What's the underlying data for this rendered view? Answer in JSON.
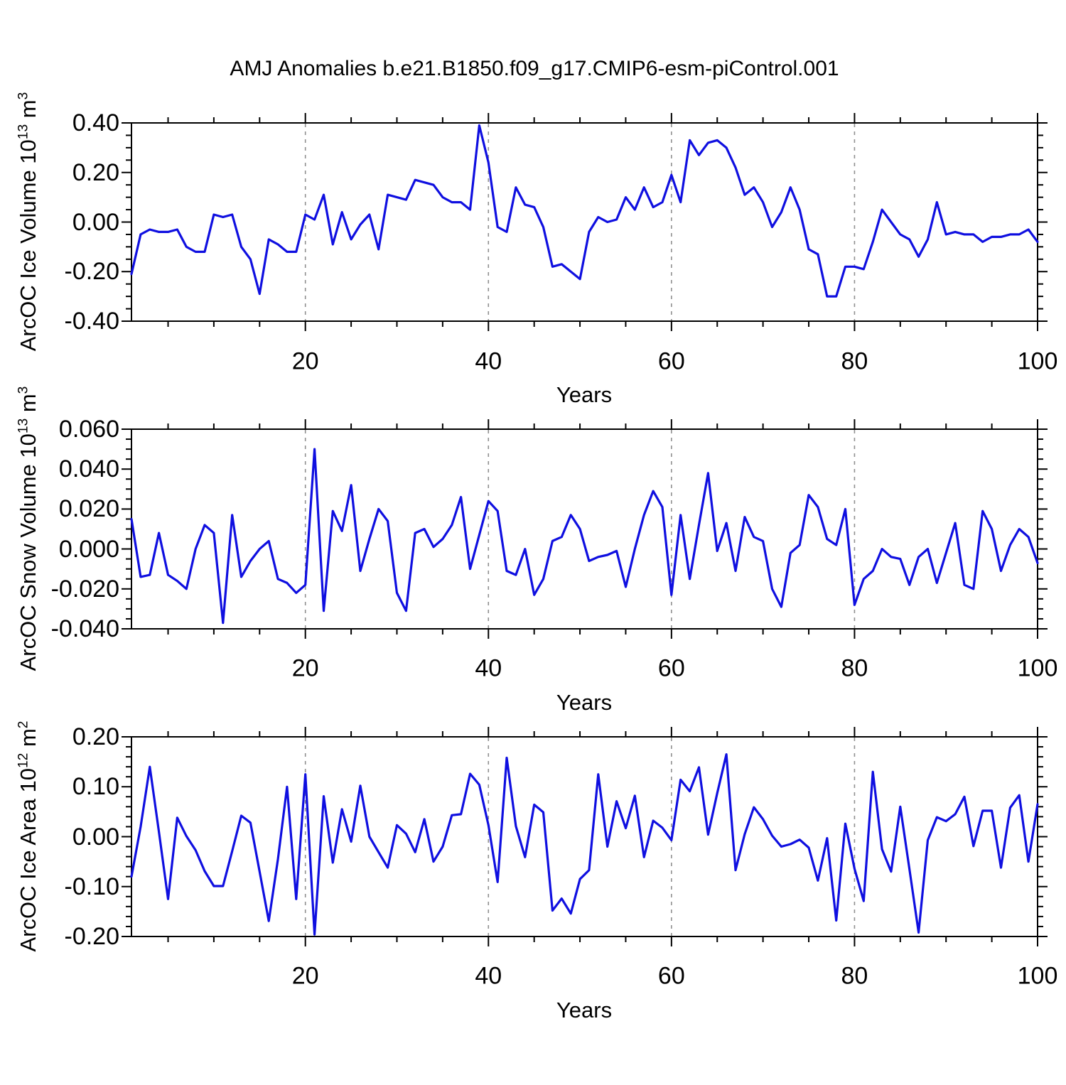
{
  "title": "AMJ Anomalies b.e21.B1850.f09_g17.CMIP6-esm-piControl.001",
  "colors": {
    "line": "#0f0fe0",
    "grid": "#909090",
    "frame": "#000000"
  },
  "chart_data": [
    {
      "type": "line",
      "ylabel": {
        "pre": "ArcOC Ice Volume 10",
        "exp": "13",
        "unit": " m",
        "unit_exp": "3"
      },
      "xlabel": "Years",
      "xlim": [
        1,
        100
      ],
      "ylim": [
        -0.4,
        0.4
      ],
      "grid_x": [
        20,
        40,
        60,
        80
      ],
      "x_ticks": {
        "labels": [
          "20",
          "40",
          "60",
          "80",
          "100"
        ],
        "values": [
          20,
          40,
          60,
          80,
          100
        ],
        "minor_step": 5
      },
      "y_ticks": {
        "labels": [
          "0.40",
          "0.20",
          "0.00",
          "-0.20",
          "-0.40"
        ],
        "values": [
          0.4,
          0.2,
          0.0,
          -0.2,
          -0.4
        ],
        "minor_step": 0.05
      },
      "x_start": 1,
      "x_step": 1,
      "values": [
        -0.21,
        -0.05,
        -0.03,
        -0.04,
        -0.04,
        -0.03,
        -0.1,
        -0.12,
        -0.12,
        0.03,
        0.02,
        0.03,
        -0.1,
        -0.15,
        -0.29,
        -0.07,
        -0.09,
        -0.12,
        -0.12,
        0.03,
        0.01,
        0.11,
        -0.09,
        0.04,
        -0.07,
        -0.01,
        0.03,
        -0.11,
        0.11,
        0.1,
        0.09,
        0.17,
        0.16,
        0.15,
        0.1,
        0.08,
        0.08,
        0.05,
        0.39,
        0.24,
        -0.02,
        -0.04,
        0.14,
        0.07,
        0.06,
        -0.02,
        -0.18,
        -0.17,
        -0.2,
        -0.23,
        -0.04,
        0.02,
        0.0,
        0.01,
        0.1,
        0.05,
        0.14,
        0.06,
        0.08,
        0.19,
        0.08,
        0.33,
        0.27,
        0.32,
        0.33,
        0.3,
        0.22,
        0.11,
        0.14,
        0.08,
        -0.02,
        0.04,
        0.14,
        0.05,
        -0.11,
        -0.13,
        -0.3,
        -0.3,
        -0.18,
        -0.18,
        -0.19,
        -0.08,
        0.05,
        0.0,
        -0.05,
        -0.07,
        -0.14,
        -0.07,
        0.08,
        -0.05,
        -0.04,
        -0.05,
        -0.05,
        -0.08,
        -0.06,
        -0.06,
        -0.05,
        -0.05,
        -0.03,
        -0.08
      ]
    },
    {
      "type": "line",
      "ylabel": {
        "pre": "ArcOC Snow Volume 10",
        "exp": "13",
        "unit": " m",
        "unit_exp": "3"
      },
      "xlabel": "Years",
      "xlim": [
        1,
        100
      ],
      "ylim": [
        -0.04,
        0.06
      ],
      "grid_x": [
        20,
        40,
        60,
        80
      ],
      "x_ticks": {
        "labels": [
          "20",
          "40",
          "60",
          "80",
          "100"
        ],
        "values": [
          20,
          40,
          60,
          80,
          100
        ],
        "minor_step": 5
      },
      "y_ticks": {
        "labels": [
          "0.060",
          "0.040",
          "0.020",
          "0.000",
          "-0.020",
          "-0.040"
        ],
        "values": [
          0.06,
          0.04,
          0.02,
          0.0,
          -0.02,
          -0.04
        ],
        "minor_step": 0.005
      },
      "x_start": 1,
      "x_step": 1,
      "values": [
        0.015,
        -0.014,
        -0.013,
        0.008,
        -0.013,
        -0.016,
        -0.02,
        0.0,
        0.012,
        0.008,
        -0.037,
        0.017,
        -0.014,
        -0.006,
        0.0,
        0.004,
        -0.015,
        -0.017,
        -0.022,
        -0.018,
        0.05,
        -0.031,
        0.019,
        0.009,
        0.032,
        -0.011,
        0.005,
        0.02,
        0.014,
        -0.022,
        -0.031,
        0.008,
        0.01,
        0.001,
        0.005,
        0.012,
        0.026,
        -0.01,
        0.007,
        0.024,
        0.019,
        -0.011,
        -0.013,
        0.0,
        -0.023,
        -0.015,
        0.004,
        0.006,
        0.017,
        0.01,
        -0.006,
        -0.004,
        -0.003,
        -0.001,
        -0.019,
        0.0,
        0.017,
        0.029,
        0.021,
        -0.023,
        0.017,
        -0.015,
        0.012,
        0.038,
        -0.001,
        0.013,
        -0.011,
        0.016,
        0.006,
        0.004,
        -0.02,
        -0.029,
        -0.002,
        0.002,
        0.027,
        0.021,
        0.005,
        0.002,
        0.02,
        -0.028,
        -0.015,
        -0.011,
        0.0,
        -0.004,
        -0.005,
        -0.018,
        -0.004,
        0.0,
        -0.017,
        -0.002,
        0.013,
        -0.018,
        -0.02,
        0.019,
        0.01,
        -0.011,
        0.002,
        0.01,
        0.006,
        -0.007
      ]
    },
    {
      "type": "line",
      "ylabel": {
        "pre": "ArcOC Ice Area 10",
        "exp": "12",
        "unit": " m",
        "unit_exp": "2"
      },
      "xlabel": "Years",
      "xlim": [
        1,
        100
      ],
      "ylim": [
        -0.2,
        0.2
      ],
      "grid_x": [
        20,
        40,
        60,
        80
      ],
      "x_ticks": {
        "labels": [
          "20",
          "40",
          "60",
          "80",
          "100"
        ],
        "values": [
          20,
          40,
          60,
          80,
          100
        ],
        "minor_step": 5
      },
      "y_ticks": {
        "labels": [
          "0.20",
          "0.10",
          "0.00",
          "-0.10",
          "-0.20"
        ],
        "values": [
          0.2,
          0.1,
          0.0,
          -0.1,
          -0.2
        ],
        "minor_step": 0.02
      },
      "x_start": 1,
      "x_step": 1,
      "values": [
        -0.08,
        0.02,
        0.14,
        0.01,
        -0.125,
        0.038,
        0.001,
        -0.027,
        -0.069,
        -0.099,
        -0.099,
        -0.029,
        0.042,
        0.028,
        -0.07,
        -0.169,
        -0.045,
        0.1,
        -0.125,
        0.125,
        -0.196,
        0.081,
        -0.052,
        0.055,
        -0.01,
        0.102,
        0.0,
        -0.031,
        -0.062,
        0.023,
        0.006,
        -0.031,
        0.035,
        -0.05,
        -0.02,
        0.043,
        0.045,
        0.126,
        0.104,
        0.023,
        -0.091,
        0.158,
        0.021,
        -0.041,
        0.064,
        0.049,
        -0.148,
        -0.124,
        -0.154,
        -0.085,
        -0.067,
        0.125,
        -0.02,
        0.071,
        0.017,
        0.082,
        -0.041,
        0.032,
        0.018,
        -0.007,
        0.114,
        0.091,
        0.139,
        0.004,
        0.087,
        0.165,
        -0.067,
        0.005,
        0.059,
        0.035,
        0.002,
        -0.02,
        -0.015,
        -0.006,
        -0.022,
        -0.088,
        -0.003,
        -0.168,
        0.026,
        -0.064,
        -0.129,
        0.13,
        -0.025,
        -0.07,
        0.06,
        -0.065,
        -0.192,
        -0.007,
        0.039,
        0.031,
        0.045,
        0.08,
        -0.019,
        0.052,
        0.052,
        -0.062,
        0.058,
        0.083,
        -0.05,
        0.065
      ]
    }
  ]
}
